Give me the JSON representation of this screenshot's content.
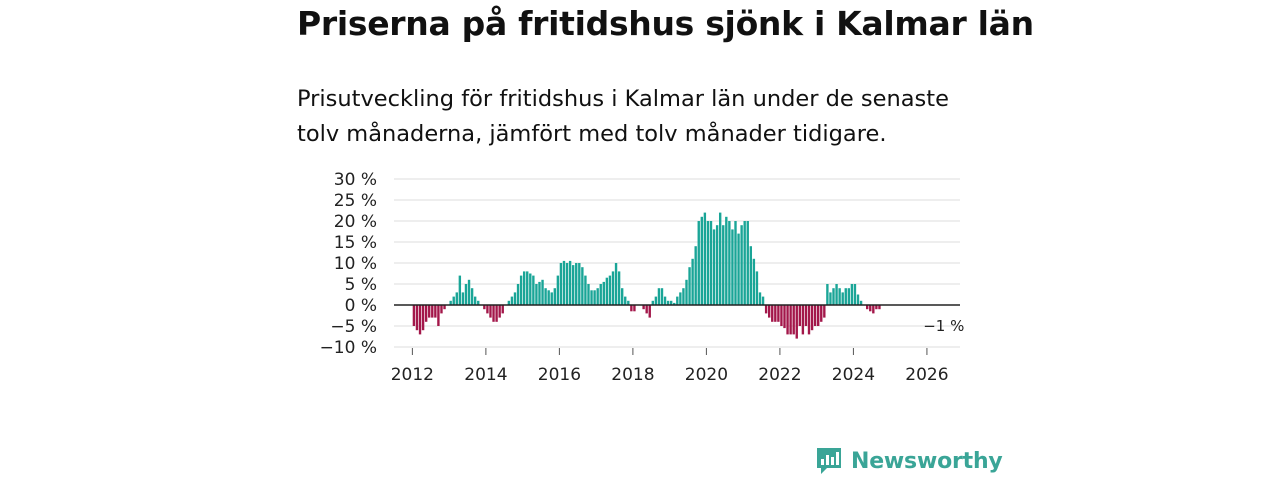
{
  "header": {
    "title": "Priserna på fritidshus sjönk i Kalmar län",
    "subtitle": "Prisutveckling för fritidshus i Kalmar län under de senaste tolv månaderna, jämfört med tolv månader tidigare."
  },
  "brand": {
    "name": "Newsworthy"
  },
  "colors": {
    "positive": "#1aa597",
    "negative": "#a3174a",
    "grid": "#dddddd",
    "zero_line": "#222222"
  },
  "chart_data": {
    "type": "bar",
    "title": "Priserna på fritidshus sjönk i Kalmar län",
    "xlabel": "",
    "ylabel": "",
    "ylim": [
      -10,
      30
    ],
    "xlim": [
      2011.5,
      2026.9
    ],
    "y_ticks": [
      -10,
      -5,
      0,
      5,
      10,
      15,
      20,
      25,
      30
    ],
    "y_tick_labels": [
      "−10 %",
      "−5 %",
      "0 %",
      "5 %",
      "10 %",
      "15 %",
      "20 %",
      "25 %",
      "30 %"
    ],
    "x_ticks": [
      2012,
      2014,
      2016,
      2018,
      2020,
      2022,
      2024,
      2026
    ],
    "x_tick_labels": [
      "2012",
      "2014",
      "2016",
      "2018",
      "2020",
      "2022",
      "2024",
      "2026"
    ],
    "start": "2012-01",
    "frequency": "monthly",
    "values": [
      -5,
      -6,
      -7,
      -6,
      -4,
      -3,
      -3,
      -3,
      -5,
      -2,
      -1,
      0,
      1,
      2,
      3,
      7,
      3,
      5,
      6,
      4,
      2,
      1,
      0,
      -1,
      -2,
      -3,
      -4,
      -4,
      -3,
      -2,
      0,
      1,
      2,
      3,
      5,
      7,
      8,
      8,
      7.5,
      7,
      5,
      5.5,
      6,
      4,
      3.5,
      3,
      4,
      7,
      10,
      10.5,
      10,
      10.5,
      9.5,
      10,
      10,
      9,
      7,
      5,
      3.5,
      3.5,
      4,
      5,
      5.5,
      6.5,
      7,
      8,
      10,
      8,
      4,
      2,
      1,
      -1.5,
      -1.5,
      0,
      0,
      -1,
      -2,
      -3,
      1,
      2,
      4,
      4,
      2,
      1,
      1,
      0.5,
      2,
      3,
      4,
      6,
      9,
      11,
      14,
      20,
      21,
      22,
      20,
      20,
      18,
      19,
      22,
      19,
      21,
      20,
      18,
      20,
      17,
      19,
      20,
      20,
      14,
      11,
      8,
      3,
      2,
      -2,
      -3,
      -4,
      -4,
      -4,
      -5,
      -5.5,
      -7,
      -7,
      -7,
      -8,
      -5,
      -7,
      -5,
      -7,
      -6,
      -5,
      -5,
      -4,
      -3,
      5,
      3,
      4,
      5,
      4,
      3,
      4,
      4,
      5,
      5,
      2.5,
      1,
      0,
      -1,
      -1.5,
      -2,
      -1,
      -1
    ],
    "annotations": [
      {
        "label": "−1 %",
        "date": "2026-06",
        "value": -1
      }
    ]
  }
}
